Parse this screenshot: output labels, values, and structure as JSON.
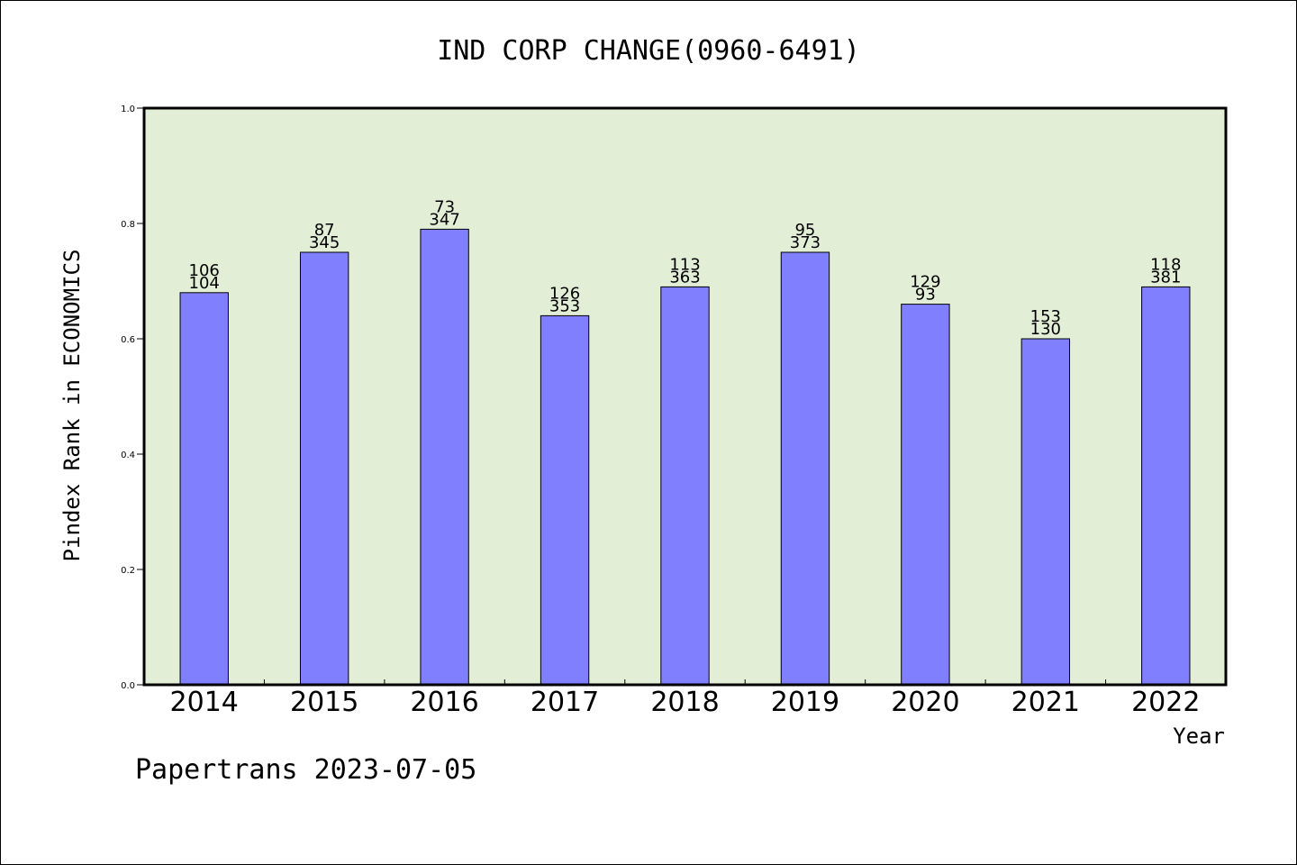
{
  "chart_data": {
    "type": "bar",
    "title": "IND CORP CHANGE(0960-6491)",
    "xlabel": "Year",
    "ylabel": "Pindex Rank in ECONOMICS",
    "ylim": [
      0,
      1.0
    ],
    "yticks": [
      "0.0",
      "0.2",
      "0.4",
      "0.6",
      "0.8",
      "1.0"
    ],
    "categories": [
      "2014",
      "2015",
      "2016",
      "2017",
      "2018",
      "2019",
      "2020",
      "2021",
      "2022"
    ],
    "values": [
      0.68,
      0.75,
      0.79,
      0.64,
      0.69,
      0.75,
      0.66,
      0.6,
      0.69
    ],
    "labels_top": [
      "106",
      "87",
      "73",
      "126",
      "113",
      "95",
      "129",
      "153",
      "118"
    ],
    "labels_bottom": [
      "104",
      "345",
      "347",
      "353",
      "363",
      "373",
      "93",
      "130",
      "381"
    ],
    "grid": false,
    "legend": "none",
    "colors": {
      "plot_background": "#e2efd6",
      "bar_fill": "#8080ff",
      "bar_stroke": "#000000"
    }
  },
  "footer": {
    "credit": "Papertrans 2023-07-05"
  }
}
